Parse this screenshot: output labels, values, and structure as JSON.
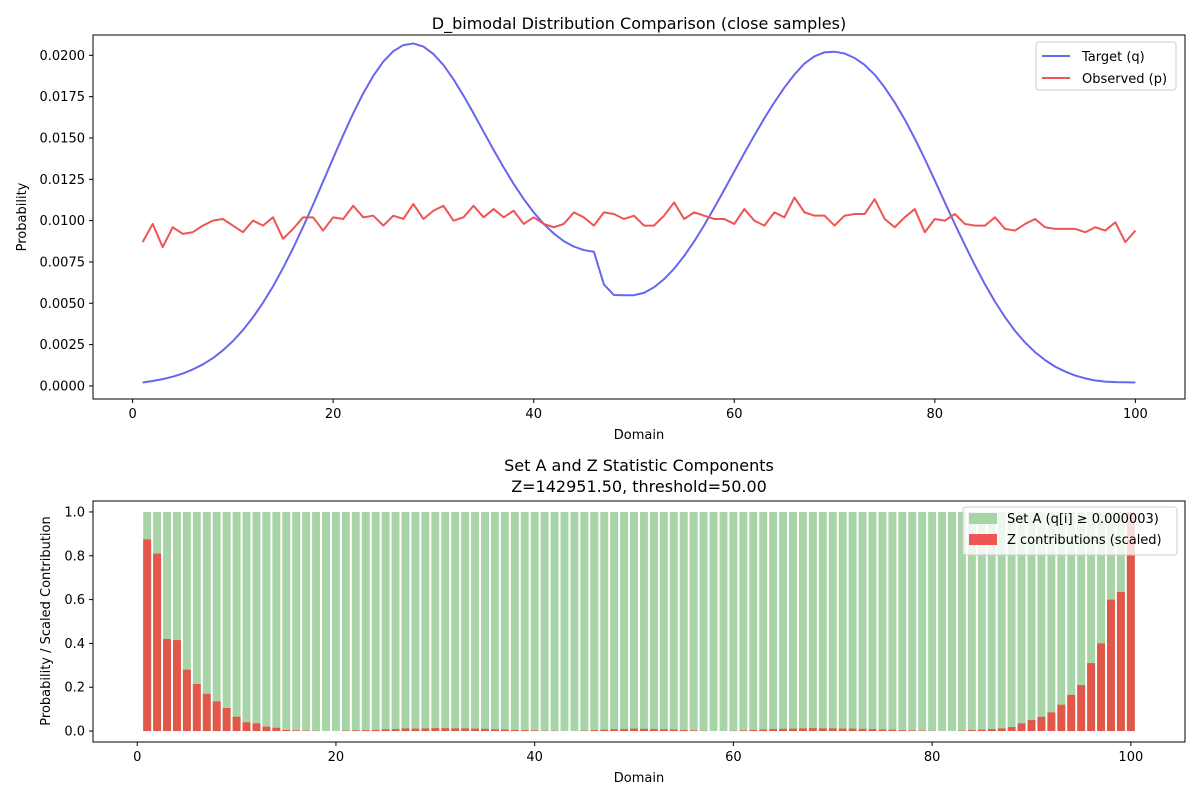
{
  "chart_data": [
    {
      "type": "line",
      "title": "D_bimodal Distribution Comparison (close samples)",
      "xlabel": "Domain",
      "ylabel": "Probability",
      "xlim": [
        -3.95,
        104.95
      ],
      "ylim": [
        -0.00079,
        0.02123
      ],
      "xticks": [
        0,
        20,
        40,
        60,
        80,
        100
      ],
      "yticks": [
        0.0,
        0.0025,
        0.005,
        0.0075,
        0.01,
        0.0125,
        0.015,
        0.0175,
        0.02
      ],
      "ytick_labels": [
        "0.0000",
        "0.0025",
        "0.0050",
        "0.0075",
        "0.0100",
        "0.0125",
        "0.0150",
        "0.0175",
        "0.0200"
      ],
      "grid": false,
      "legend": "top-right",
      "series": [
        {
          "name": "Target (q)",
          "color": "#6666ee",
          "note_x": "domain 1..100",
          "x": [
            1,
            2,
            3,
            4,
            5,
            6,
            7,
            8,
            9,
            10,
            11,
            12,
            13,
            14,
            15,
            16,
            17,
            18,
            19,
            20,
            21,
            22,
            23,
            24,
            25,
            26,
            27,
            28,
            29,
            30,
            31,
            32,
            33,
            34,
            35,
            36,
            37,
            38,
            39,
            40,
            41,
            42,
            43,
            44,
            45,
            46,
            47,
            48,
            49,
            50,
            51,
            52,
            53,
            54,
            55,
            56,
            57,
            58,
            59,
            60,
            61,
            62,
            63,
            64,
            65,
            66,
            67,
            68,
            69,
            70,
            71,
            72,
            73,
            74,
            75,
            76,
            77,
            78,
            79,
            80,
            81,
            82,
            83,
            84,
            85,
            86,
            87,
            88,
            89,
            90,
            91,
            92,
            93,
            94,
            95,
            96,
            97,
            98,
            99,
            100
          ],
          "values": [
            0.00021,
            0.0003,
            0.00041,
            0.00056,
            0.00075,
            0.001,
            0.0013,
            0.00168,
            0.00215,
            0.00271,
            0.00338,
            0.00415,
            0.00503,
            0.00602,
            0.00713,
            0.00833,
            0.00962,
            0.01097,
            0.01237,
            0.01378,
            0.01517,
            0.01649,
            0.0177,
            0.01876,
            0.01962,
            0.02025,
            0.02062,
            0.02072,
            0.02053,
            0.02008,
            0.01941,
            0.01855,
            0.01756,
            0.01649,
            0.01538,
            0.01428,
            0.01322,
            0.01222,
            0.01131,
            0.0105,
            0.0098,
            0.00922,
            0.00876,
            0.00843,
            0.00822,
            0.00812,
            0.00614,
            0.0055,
            0.00549,
            0.00549,
            0.00563,
            0.00597,
            0.00646,
            0.00709,
            0.00786,
            0.00874,
            0.00972,
            0.01077,
            0.01186,
            0.01297,
            0.01408,
            0.01515,
            0.01619,
            0.01716,
            0.01805,
            0.01884,
            0.0195,
            0.01994,
            0.02018,
            0.02022,
            0.02011,
            0.01984,
            0.01942,
            0.01883,
            0.01806,
            0.01715,
            0.01612,
            0.01497,
            0.01373,
            0.01243,
            0.0111,
            0.00979,
            0.00852,
            0.0073,
            0.00615,
            0.0051,
            0.00416,
            0.00333,
            0.00263,
            0.00204,
            0.00156,
            0.00117,
            0.00087,
            0.00063,
            0.00046,
            0.00033,
            0.00026,
            0.00023,
            0.00022,
            0.00021
          ]
        },
        {
          "name": "Observed (p)",
          "color": "#ee5555",
          "x": [
            1,
            2,
            3,
            4,
            5,
            6,
            7,
            8,
            9,
            10,
            11,
            12,
            13,
            14,
            15,
            16,
            17,
            18,
            19,
            20,
            21,
            22,
            23,
            24,
            25,
            26,
            27,
            28,
            29,
            30,
            31,
            32,
            33,
            34,
            35,
            36,
            37,
            38,
            39,
            40,
            41,
            42,
            43,
            44,
            45,
            46,
            47,
            48,
            49,
            50,
            51,
            52,
            53,
            54,
            55,
            56,
            57,
            58,
            59,
            60,
            61,
            62,
            63,
            64,
            65,
            66,
            67,
            68,
            69,
            70,
            71,
            72,
            73,
            74,
            75,
            76,
            77,
            78,
            79,
            80,
            81,
            82,
            83,
            84,
            85,
            86,
            87,
            88,
            89,
            90,
            91,
            92,
            93,
            94,
            95,
            96,
            97,
            98,
            99,
            100
          ],
          "values": [
            0.0087,
            0.0098,
            0.0084,
            0.0096,
            0.0092,
            0.0093,
            0.0097,
            0.01,
            0.0101,
            0.0097,
            0.0093,
            0.01,
            0.0097,
            0.0102,
            0.0089,
            0.0095,
            0.0102,
            0.0102,
            0.0094,
            0.0102,
            0.0101,
            0.0109,
            0.0102,
            0.0103,
            0.0097,
            0.0103,
            0.0101,
            0.011,
            0.0101,
            0.0106,
            0.0109,
            0.01,
            0.0102,
            0.0109,
            0.0102,
            0.0107,
            0.0102,
            0.0106,
            0.0098,
            0.0102,
            0.0098,
            0.0096,
            0.0098,
            0.0105,
            0.0102,
            0.0097,
            0.0105,
            0.0104,
            0.0101,
            0.0103,
            0.0097,
            0.0097,
            0.0103,
            0.0111,
            0.0101,
            0.0105,
            0.0103,
            0.0101,
            0.0101,
            0.0098,
            0.0107,
            0.01,
            0.0097,
            0.0105,
            0.0102,
            0.0114,
            0.0105,
            0.0103,
            0.0103,
            0.0097,
            0.0103,
            0.0104,
            0.0104,
            0.0113,
            0.0101,
            0.0096,
            0.0102,
            0.0107,
            0.0093,
            0.0101,
            0.01,
            0.0104,
            0.0098,
            0.0097,
            0.0097,
            0.0102,
            0.0095,
            0.0094,
            0.0098,
            0.0101,
            0.0096,
            0.0095,
            0.0095,
            0.0095,
            0.0093,
            0.0096,
            0.0094,
            0.0099,
            0.0087,
            0.0094
          ]
        }
      ]
    },
    {
      "type": "bar",
      "title": "Set A and Z Statistic Components",
      "subtitle": "Z=142951.50, threshold=50.00",
      "xlabel": "Domain",
      "ylabel": "Probability / Scaled Contribution",
      "xlim": [
        -4.45,
        105.45
      ],
      "ylim": [
        -0.05,
        1.05
      ],
      "xticks": [
        0,
        20,
        40,
        60,
        80,
        100
      ],
      "yticks": [
        0.0,
        0.2,
        0.4,
        0.6,
        0.8,
        1.0
      ],
      "ytick_labels": [
        "0.0",
        "0.2",
        "0.4",
        "0.6",
        "0.8",
        "1.0"
      ],
      "grid": false,
      "legend": "top-right",
      "bar_width": 0.8,
      "series": [
        {
          "name": "Set A (q[i] ≥ 0.000003)",
          "color": "#a8d5a8",
          "x": [
            1,
            2,
            3,
            4,
            5,
            6,
            7,
            8,
            9,
            10,
            11,
            12,
            13,
            14,
            15,
            16,
            17,
            18,
            19,
            20,
            21,
            22,
            23,
            24,
            25,
            26,
            27,
            28,
            29,
            30,
            31,
            32,
            33,
            34,
            35,
            36,
            37,
            38,
            39,
            40,
            41,
            42,
            43,
            44,
            45,
            46,
            47,
            48,
            49,
            50,
            51,
            52,
            53,
            54,
            55,
            56,
            57,
            58,
            59,
            60,
            61,
            62,
            63,
            64,
            65,
            66,
            67,
            68,
            69,
            70,
            71,
            72,
            73,
            74,
            75,
            76,
            77,
            78,
            79,
            80,
            81,
            82,
            83,
            84,
            85,
            86,
            87,
            88,
            89,
            90,
            91,
            92,
            93,
            94,
            95,
            96,
            97,
            98,
            99,
            100
          ],
          "values": [
            1,
            1,
            1,
            1,
            1,
            1,
            1,
            1,
            1,
            1,
            1,
            1,
            1,
            1,
            1,
            1,
            1,
            1,
            1,
            1,
            1,
            1,
            1,
            1,
            1,
            1,
            1,
            1,
            1,
            1,
            1,
            1,
            1,
            1,
            1,
            1,
            1,
            1,
            1,
            1,
            1,
            1,
            1,
            1,
            1,
            1,
            1,
            1,
            1,
            1,
            1,
            1,
            1,
            1,
            1,
            1,
            1,
            1,
            1,
            1,
            1,
            1,
            1,
            1,
            1,
            1,
            1,
            1,
            1,
            1,
            1,
            1,
            1,
            1,
            1,
            1,
            1,
            1,
            1,
            1,
            1,
            1,
            1,
            1,
            1,
            1,
            1,
            1,
            1,
            1,
            1,
            1,
            1,
            1,
            1,
            1,
            1,
            1,
            1,
            1
          ]
        },
        {
          "name": "Z contributions (scaled)",
          "color": "#e8453c",
          "x": [
            1,
            2,
            3,
            4,
            5,
            6,
            7,
            8,
            9,
            10,
            11,
            12,
            13,
            14,
            15,
            16,
            17,
            18,
            19,
            20,
            21,
            22,
            23,
            24,
            25,
            26,
            27,
            28,
            29,
            30,
            31,
            32,
            33,
            34,
            35,
            36,
            37,
            38,
            39,
            40,
            41,
            42,
            43,
            44,
            45,
            46,
            47,
            48,
            49,
            50,
            51,
            52,
            53,
            54,
            55,
            56,
            57,
            58,
            59,
            60,
            61,
            62,
            63,
            64,
            65,
            66,
            67,
            68,
            69,
            70,
            71,
            72,
            73,
            74,
            75,
            76,
            77,
            78,
            79,
            80,
            81,
            82,
            83,
            84,
            85,
            86,
            87,
            88,
            89,
            90,
            91,
            92,
            93,
            94,
            95,
            96,
            97,
            98,
            99,
            100
          ],
          "values": [
            0.875,
            0.81,
            0.42,
            0.415,
            0.28,
            0.215,
            0.17,
            0.135,
            0.105,
            0.065,
            0.04,
            0.035,
            0.02,
            0.015,
            0.005,
            0.003,
            0.002,
            0.001,
            0.0,
            0.0,
            0.002,
            0.003,
            0.004,
            0.005,
            0.008,
            0.009,
            0.012,
            0.011,
            0.012,
            0.013,
            0.013,
            0.012,
            0.012,
            0.011,
            0.01,
            0.008,
            0.007,
            0.005,
            0.004,
            0.003,
            0.001,
            0.001,
            0.0,
            0.0,
            0.002,
            0.004,
            0.006,
            0.008,
            0.009,
            0.011,
            0.01,
            0.009,
            0.008,
            0.007,
            0.005,
            0.003,
            0.001,
            0.0,
            0.0,
            0.001,
            0.003,
            0.005,
            0.007,
            0.009,
            0.01,
            0.011,
            0.012,
            0.013,
            0.012,
            0.012,
            0.011,
            0.011,
            0.01,
            0.009,
            0.007,
            0.006,
            0.004,
            0.003,
            0.002,
            0.001,
            0.0,
            0.0,
            0.002,
            0.004,
            0.006,
            0.009,
            0.012,
            0.018,
            0.035,
            0.05,
            0.065,
            0.085,
            0.12,
            0.165,
            0.21,
            0.31,
            0.4,
            0.6,
            0.635,
            1.0
          ]
        }
      ]
    }
  ]
}
